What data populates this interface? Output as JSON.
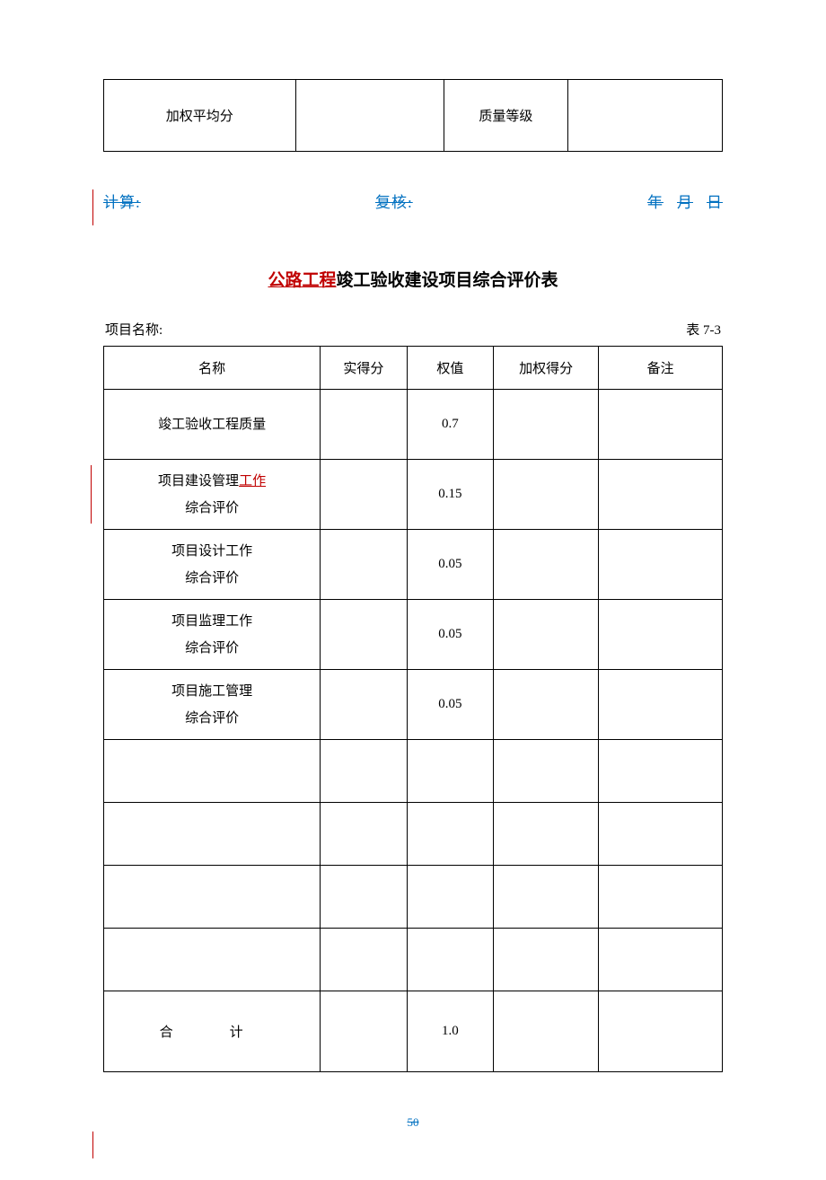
{
  "top_table": {
    "cells": {
      "c1": "加权平均分",
      "c2": "",
      "c3": "质量等级",
      "c4": ""
    }
  },
  "revision": {
    "calc_label": "计算:",
    "review_label": "复核:",
    "year": "年",
    "month": "月",
    "day": "日"
  },
  "title": {
    "red_part": "公路工程",
    "rest": "竣工验收建设项目综合评价表"
  },
  "meta": {
    "project_label": "项目名称:",
    "table_no": "表 7-3"
  },
  "main_table": {
    "headers": [
      "名称",
      "实得分",
      "权值",
      "加权得分",
      "备注"
    ],
    "rows": [
      {
        "name_line1": "竣工验收工程质量",
        "name_line2": "",
        "red_in_line1": "",
        "score": "",
        "weight": "0.7",
        "wscore": "",
        "remark": "",
        "has_rev": false
      },
      {
        "name_line1_pre": "项目建设管理",
        "red_in_line1": "工作",
        "name_line2": "综合评价",
        "score": "",
        "weight": "0.15",
        "wscore": "",
        "remark": "",
        "has_rev": true
      },
      {
        "name_line1": "项目设计工作",
        "name_line2": "综合评价",
        "red_in_line1": "",
        "score": "",
        "weight": "0.05",
        "wscore": "",
        "remark": "",
        "has_rev": false
      },
      {
        "name_line1": "项目监理工作",
        "name_line2": "综合评价",
        "red_in_line1": "",
        "score": "",
        "weight": "0.05",
        "wscore": "",
        "remark": "",
        "has_rev": false
      },
      {
        "name_line1": "项目施工管理",
        "name_line2": "综合评价",
        "red_in_line1": "",
        "score": "",
        "weight": "0.05",
        "wscore": "",
        "remark": "",
        "has_rev": false
      },
      {
        "name_line1": "",
        "name_line2": "",
        "red_in_line1": "",
        "score": "",
        "weight": "",
        "wscore": "",
        "remark": "",
        "has_rev": false
      },
      {
        "name_line1": "",
        "name_line2": "",
        "red_in_line1": "",
        "score": "",
        "weight": "",
        "wscore": "",
        "remark": "",
        "has_rev": false
      },
      {
        "name_line1": "",
        "name_line2": "",
        "red_in_line1": "",
        "score": "",
        "weight": "",
        "wscore": "",
        "remark": "",
        "has_rev": false
      },
      {
        "name_line1": "",
        "name_line2": "",
        "red_in_line1": "",
        "score": "",
        "weight": "",
        "wscore": "",
        "remark": "",
        "has_rev": false
      }
    ],
    "total": {
      "label": "合　计",
      "score": "",
      "weight": "1.0",
      "wscore": "",
      "remark": ""
    }
  },
  "page_number": "50"
}
